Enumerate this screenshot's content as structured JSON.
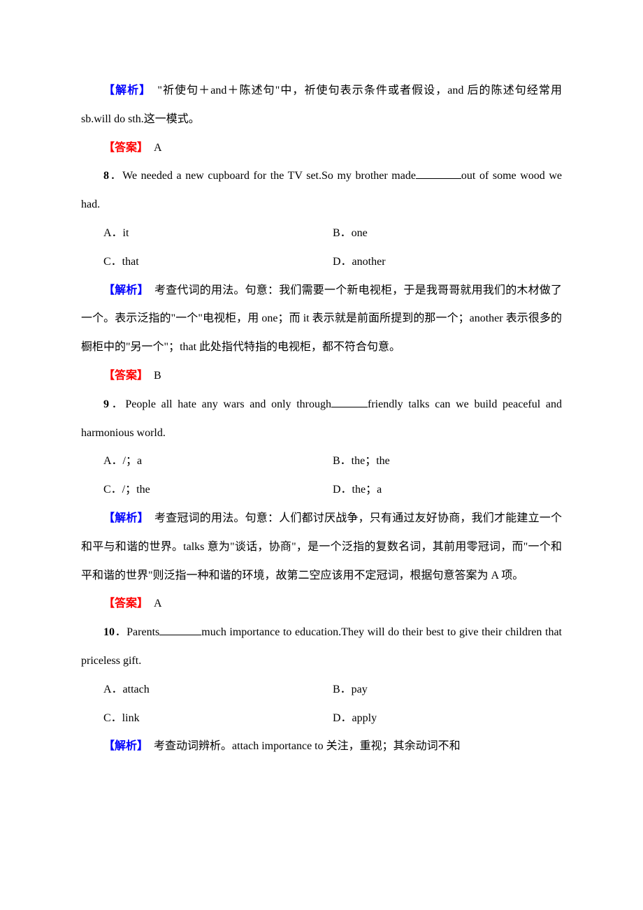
{
  "colors": {
    "analysis": "#0000ff",
    "answer": "#ff0000",
    "text": "#000000",
    "bg": "#ffffff"
  },
  "labels": {
    "analysis": "【解析】",
    "answer": "【答案】"
  },
  "q7": {
    "analysis": "　\"祈使句＋and＋陈述句\"中，祈使句表示条件或者假设，and 后的陈述句经常用 sb.will do sth.这一模式。",
    "ans": "　A"
  },
  "q8": {
    "num": "8",
    "stem_a": "．We needed a new cupboard for the TV set.So my brother made",
    "stem_b": "out of some wood we had.",
    "A": "A．it",
    "B": "B．one",
    "C": "C．that",
    "D": "D．another",
    "analysis": "　考查代词的用法。句意：我们需要一个新电视柜，于是我哥哥就用我们的木材做了一个。表示泛指的\"一个\"电视柜，用 one；而 it 表示就是前面所提到的那一个；another 表示很多的橱柜中的\"另一个\"；that 此处指代特指的电视柜，都不符合句意。",
    "ans": "　B"
  },
  "q9": {
    "num": "9",
    "stem_a": "．People all hate any wars and only through",
    "stem_b": "friendly talks can we build peaceful and harmonious world.",
    "A": "A．/；a",
    "B": "B．the；the",
    "C": "C．/；the",
    "D": "D．the；a",
    "analysis": "　考查冠词的用法。句意：人们都讨厌战争，只有通过友好协商，我们才能建立一个和平与和谐的世界。talks 意为\"谈话，协商\"，是一个泛指的复数名词，其前用零冠词，而\"一个和平和谐的世界\"则泛指一种和谐的环境，故第二空应该用不定冠词，根据句意答案为 A 项。",
    "ans": "　A"
  },
  "q10": {
    "num": "10",
    "stem_a": "．Parents",
    "stem_b": "much importance to education.They will do their best to give their children that priceless gift.",
    "A": "A．attach",
    "B": "B．pay",
    "C": "C．link",
    "D": "D．apply",
    "analysis": "　考查动词辨析。attach importance to 关注，重视；其余动词不和"
  }
}
